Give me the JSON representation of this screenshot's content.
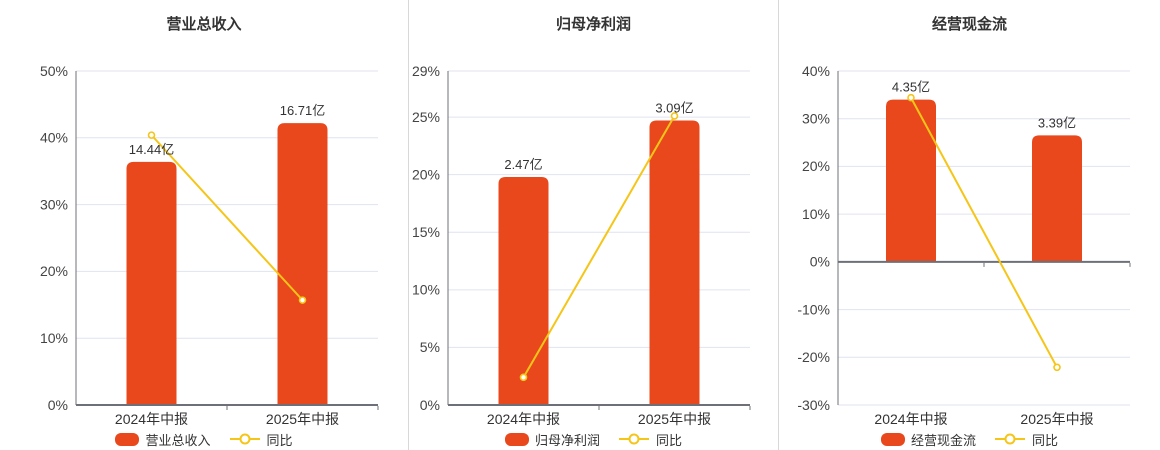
{
  "colors": {
    "bar": "#E8481C",
    "line": "#F5C518",
    "line_marker_fill": "#FFFFFF",
    "grid": "#E0E3EF",
    "axis": "#6E7079",
    "text": "#333333",
    "tick_text": "#444444",
    "divider": "#D8D8D8",
    "background": "#FFFFFF"
  },
  "chart_data": [
    {
      "type": "bar-line",
      "title": "营业总收入",
      "categories": [
        "2024年中报",
        "2025年中报"
      ],
      "series": [
        {
          "name": "营业总收入",
          "type": "bar",
          "values_yi": [
            14.44,
            16.71
          ],
          "labels": [
            "14.44亿",
            "16.71亿"
          ],
          "display_pct": [
            36.4,
            42.2
          ]
        },
        {
          "name": "同比",
          "type": "line",
          "values_pct": [
            40.4,
            15.7
          ]
        }
      ],
      "ylim": [
        0,
        50
      ],
      "y_ticks_pct": [
        50,
        40,
        30,
        20,
        10,
        0
      ],
      "grid": true,
      "legend_position": "bottom"
    },
    {
      "type": "bar-line",
      "title": "归母净利润",
      "categories": [
        "2024年中报",
        "2025年中报"
      ],
      "series": [
        {
          "name": "归母净利润",
          "type": "bar",
          "values_yi": [
            2.47,
            3.09
          ],
          "labels": [
            "2.47亿",
            "3.09亿"
          ],
          "display_pct": [
            19.8,
            24.7
          ]
        },
        {
          "name": "同比",
          "type": "line",
          "values_pct": [
            2.4,
            25.1
          ]
        }
      ],
      "ylim": [
        0,
        29
      ],
      "y_ticks_pct": [
        29,
        25,
        20,
        15,
        10,
        5,
        0
      ],
      "grid": true,
      "legend_position": "bottom"
    },
    {
      "type": "bar-line",
      "title": "经营现金流",
      "categories": [
        "2024年中报",
        "2025年中报"
      ],
      "series": [
        {
          "name": "经营现金流",
          "type": "bar",
          "values_yi": [
            4.35,
            3.39
          ],
          "labels": [
            "4.35亿",
            "3.39亿"
          ],
          "display_pct": [
            34.0,
            26.5
          ]
        },
        {
          "name": "同比",
          "type": "line",
          "values_pct": [
            34.4,
            -22.1
          ]
        }
      ],
      "ylim": [
        -30,
        40
      ],
      "y_ticks_pct": [
        40,
        30,
        20,
        10,
        0,
        -10,
        -20,
        -30
      ],
      "grid": true,
      "legend_position": "bottom"
    }
  ]
}
